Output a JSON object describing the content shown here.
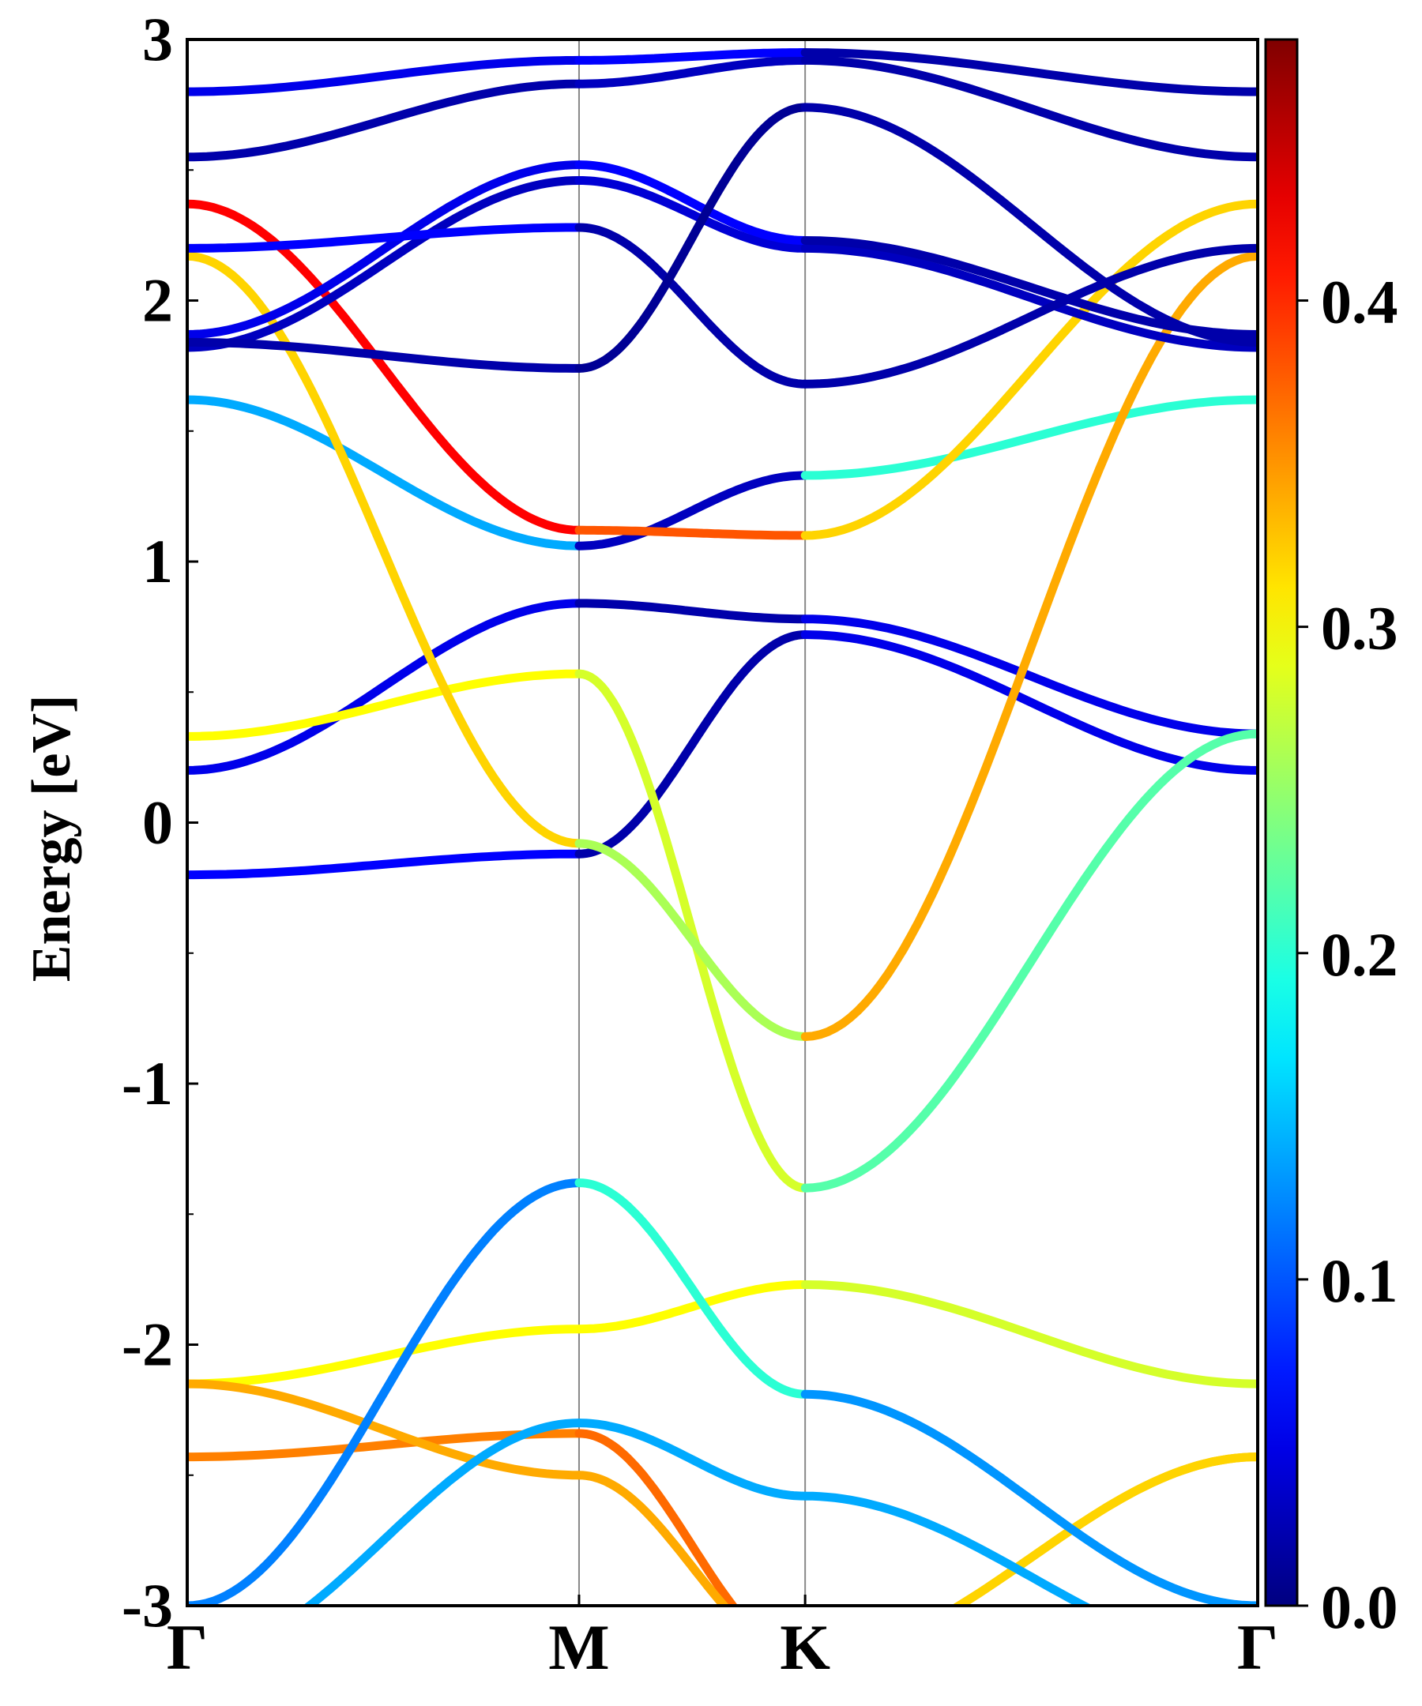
{
  "chart_data": {
    "type": "line",
    "title": "",
    "ylabel": "Energy [eV]",
    "xlabel": "",
    "ylim": [
      -3,
      3
    ],
    "yticks": [
      "-3",
      "-2",
      "-1",
      "0",
      "1",
      "2",
      "3"
    ],
    "kpath": [
      {
        "label": "Γ",
        "x": 0.0
      },
      {
        "label": "M",
        "x": 1.0
      },
      {
        "label": "K",
        "x": 1.577
      },
      {
        "label": "Γ",
        "x": 2.732
      }
    ],
    "colorbar": {
      "colormap": "jet",
      "range": [
        0.0,
        0.48
      ],
      "ticks": [
        "0.0",
        "0.1",
        "0.2",
        "0.3",
        "0.4"
      ]
    },
    "series": [
      {
        "segments": [
          {
            "x": [
              0,
              1
            ],
            "y": [
              -0.2,
              -0.12
            ],
            "c": 0.06
          },
          {
            "x": [
              1,
              1.577
            ],
            "y": [
              -0.12,
              0.72
            ],
            "c": 0.02
          },
          {
            "x": [
              1.577,
              2.732
            ],
            "y": [
              0.72,
              0.2
            ],
            "c": 0.05
          }
        ]
      },
      {
        "segments": [
          {
            "x": [
              0,
              1
            ],
            "y": [
              0.2,
              0.84
            ],
            "c": 0.05
          },
          {
            "x": [
              1,
              1.577
            ],
            "y": [
              0.84,
              0.78
            ],
            "c": 0.02
          },
          {
            "x": [
              1.577,
              2.732
            ],
            "y": [
              0.78,
              0.34
            ],
            "c": 0.05
          }
        ]
      },
      {
        "segments": [
          {
            "x": [
              0,
              1
            ],
            "y": [
              0.33,
              0.57
            ],
            "c": 0.3
          },
          {
            "x": [
              1,
              1.577
            ],
            "y": [
              0.57,
              -1.4
            ],
            "c": 0.28
          },
          {
            "x": [
              1.577,
              2.732
            ],
            "y": [
              -1.4,
              0.34
            ],
            "c": 0.22
          }
        ]
      },
      {
        "segments": [
          {
            "x": [
              0,
              1
            ],
            "y": [
              1.62,
              1.06
            ],
            "c": 0.14
          },
          {
            "x": [
              1,
              1.577
            ],
            "y": [
              1.06,
              1.33
            ],
            "c": 0.03
          },
          {
            "x": [
              1.577,
              2.732
            ],
            "y": [
              1.33,
              1.62
            ],
            "c": 0.2
          }
        ]
      },
      {
        "segments": [
          {
            "x": [
              0,
              1
            ],
            "y": [
              2.37,
              1.12
            ],
            "c": 0.42
          },
          {
            "x": [
              1,
              1.577
            ],
            "y": [
              1.12,
              1.1
            ],
            "c": 0.38
          },
          {
            "x": [
              1.577,
              2.732
            ],
            "y": [
              1.1,
              2.37
            ],
            "c": 0.32
          }
        ]
      },
      {
        "segments": [
          {
            "x": [
              0,
              1
            ],
            "y": [
              2.17,
              -0.08
            ],
            "c": 0.32
          },
          {
            "x": [
              1,
              1.577
            ],
            "y": [
              -0.08,
              -0.82
            ],
            "c": 0.26
          },
          {
            "x": [
              1.577,
              2.732
            ],
            "y": [
              -0.82,
              2.17
            ],
            "c": 0.34
          }
        ]
      },
      {
        "segments": [
          {
            "x": [
              0,
              1
            ],
            "y": [
              1.82,
              2.46
            ],
            "c": 0.03
          },
          {
            "x": [
              1,
              1.577
            ],
            "y": [
              2.46,
              2.2
            ],
            "c": 0.04
          },
          {
            "x": [
              1.577,
              2.732
            ],
            "y": [
              2.2,
              1.82
            ],
            "c": 0.03
          }
        ]
      },
      {
        "segments": [
          {
            "x": [
              0,
              1
            ],
            "y": [
              1.87,
              2.52
            ],
            "c": 0.05
          },
          {
            "x": [
              1,
              1.577
            ],
            "y": [
              2.52,
              2.23
            ],
            "c": 0.06
          },
          {
            "x": [
              1.577,
              2.732
            ],
            "y": [
              2.23,
              1.87
            ],
            "c": 0.02
          }
        ]
      },
      {
        "segments": [
          {
            "x": [
              0,
              1
            ],
            "y": [
              2.2,
              2.28
            ],
            "c": 0.06
          },
          {
            "x": [
              1,
              1.577
            ],
            "y": [
              2.28,
              1.68
            ],
            "c": 0.02
          },
          {
            "x": [
              1.577,
              2.732
            ],
            "y": [
              1.68,
              2.2
            ],
            "c": 0.02
          }
        ]
      },
      {
        "segments": [
          {
            "x": [
              0,
              1
            ],
            "y": [
              1.84,
              1.74
            ],
            "c": 0.02
          },
          {
            "x": [
              1,
              1.577
            ],
            "y": [
              1.74,
              2.74
            ],
            "c": 0.01
          },
          {
            "x": [
              1.577,
              2.732
            ],
            "y": [
              2.74,
              1.84
            ],
            "c": 0.02
          }
        ]
      },
      {
        "segments": [
          {
            "x": [
              0,
              1
            ],
            "y": [
              2.55,
              2.83
            ],
            "c": 0.02
          },
          {
            "x": [
              1,
              1.577
            ],
            "y": [
              2.83,
              2.92
            ],
            "c": 0.03
          },
          {
            "x": [
              1.577,
              2.732
            ],
            "y": [
              2.92,
              2.55
            ],
            "c": 0.02
          }
        ]
      },
      {
        "segments": [
          {
            "x": [
              0,
              1
            ],
            "y": [
              2.8,
              2.92
            ],
            "c": 0.05
          },
          {
            "x": [
              1,
              1.577
            ],
            "y": [
              2.92,
              2.95
            ],
            "c": 0.06
          },
          {
            "x": [
              1.577,
              2.732
            ],
            "y": [
              2.95,
              2.8
            ],
            "c": 0.02
          }
        ]
      },
      {
        "segments": [
          {
            "x": [
              0,
              1
            ],
            "y": [
              -2.15,
              -1.94
            ],
            "c": 0.3
          },
          {
            "x": [
              1,
              1.577
            ],
            "y": [
              -1.94,
              -1.77
            ],
            "c": 0.3
          },
          {
            "x": [
              1.577,
              2.732
            ],
            "y": [
              -1.77,
              -2.15
            ],
            "c": 0.28
          }
        ]
      },
      {
        "segments": [
          {
            "x": [
              0,
              1
            ],
            "y": [
              -2.43,
              -2.34
            ],
            "c": 0.36
          },
          {
            "x": [
              1,
              1.577
            ],
            "y": [
              -2.34,
              -3.2
            ],
            "c": 0.37
          },
          {
            "x": [
              1.577,
              2.732
            ],
            "y": [
              -3.2,
              -2.43
            ],
            "c": 0.33
          }
        ]
      },
      {
        "segments": [
          {
            "x": [
              0,
              1
            ],
            "y": [
              -2.15,
              -2.5
            ],
            "c": 0.34
          },
          {
            "x": [
              1,
              1.577
            ],
            "y": [
              -2.5,
              -3.2
            ],
            "c": 0.34
          },
          {
            "x": [
              1.577,
              2.732
            ],
            "y": [
              -3.2,
              -2.43
            ],
            "c": 0.32
          }
        ]
      },
      {
        "segments": [
          {
            "x": [
              0,
              1
            ],
            "y": [
              -3.0,
              -1.38
            ],
            "c": 0.12
          },
          {
            "x": [
              1,
              1.577
            ],
            "y": [
              -1.38,
              -2.19
            ],
            "c": 0.2
          },
          {
            "x": [
              1.577,
              2.732
            ],
            "y": [
              -2.19,
              -3.0
            ],
            "c": 0.13
          }
        ]
      },
      {
        "segments": [
          {
            "x": [
              0,
              1
            ],
            "y": [
              -3.2,
              -2.3
            ],
            "c": 0.14
          },
          {
            "x": [
              1,
              1.577
            ],
            "y": [
              -2.3,
              -2.58
            ],
            "c": 0.14
          },
          {
            "x": [
              1.577,
              2.732
            ],
            "y": [
              -2.58,
              -3.2
            ],
            "c": 0.14
          }
        ]
      }
    ]
  }
}
